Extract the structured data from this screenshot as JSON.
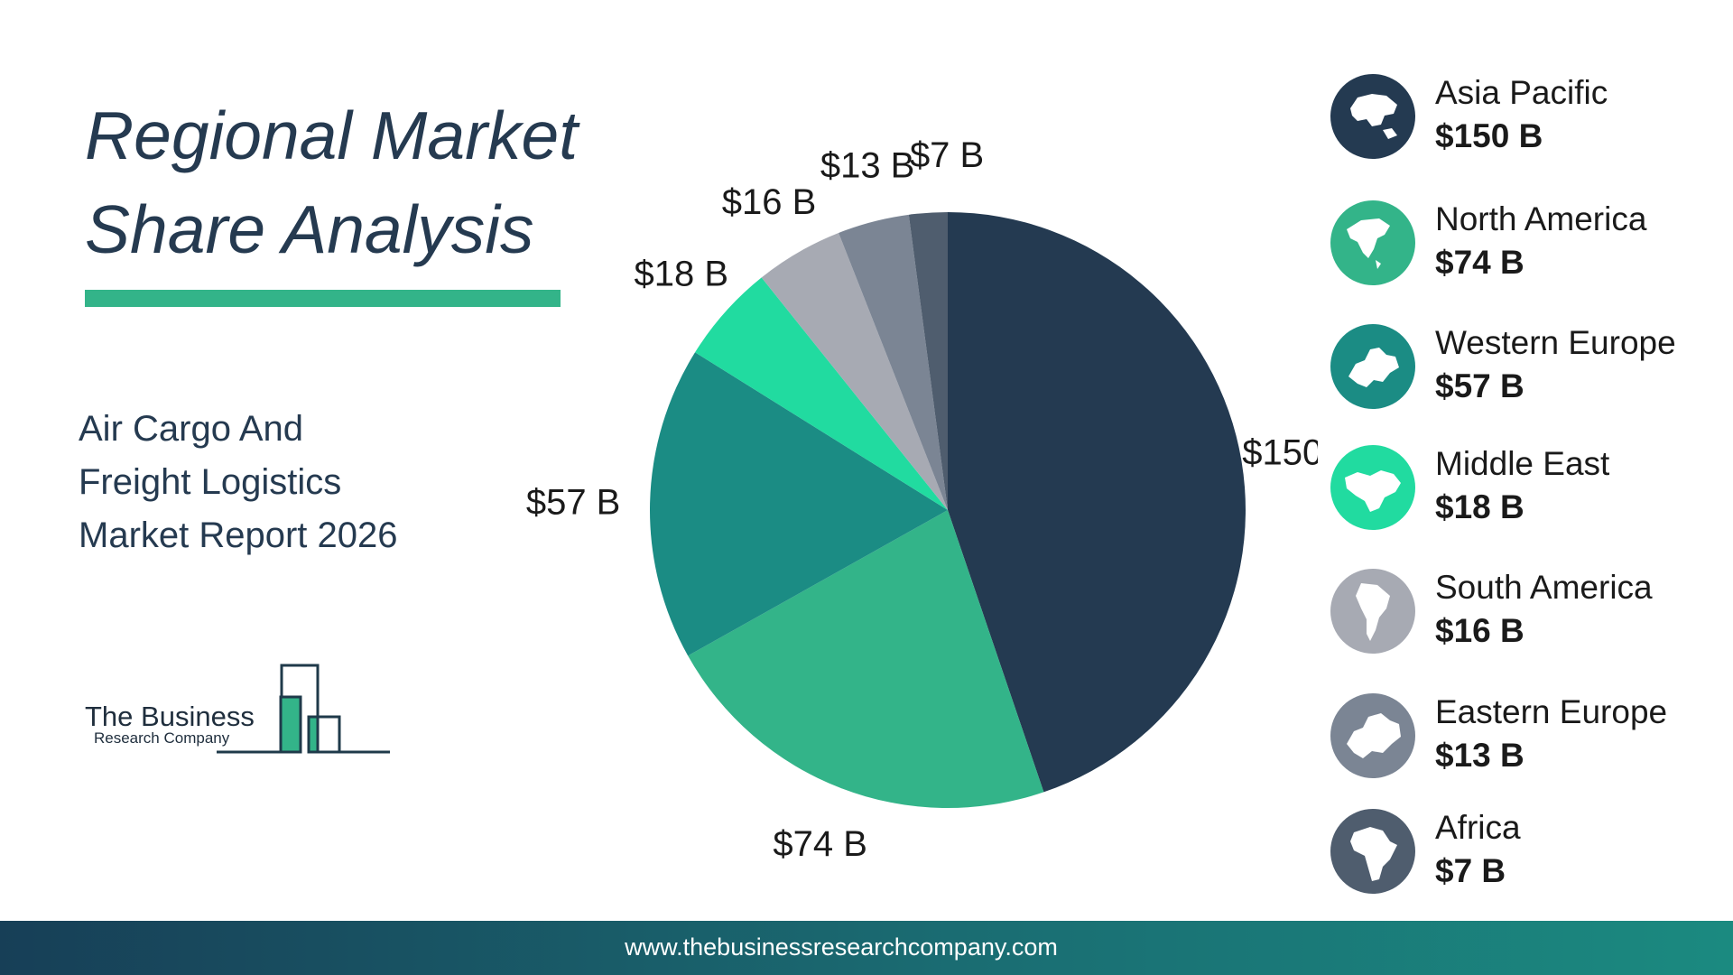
{
  "heading": {
    "line1": "Regional Market",
    "line2": "Share Analysis"
  },
  "subheading": {
    "line1": "Air Cargo And",
    "line2": "Freight Logistics",
    "line3": "Market Report 2026"
  },
  "logo": {
    "line1": "The Business",
    "line2": "Research Company"
  },
  "footer": {
    "url": "www.thebusinessresearchcompany.com"
  },
  "colors": {
    "title": "#253a50",
    "accent": "#33b489",
    "asia_pacific": "#243a51",
    "north_america": "#33b489",
    "western_europe": "#1b8c84",
    "middle_east": "#21dba0",
    "south_america": "#a7aab3",
    "eastern_europe": "#7b8594",
    "africa": "#4f5d6e"
  },
  "chart_data": {
    "type": "pie",
    "title": "Regional Market Share Analysis",
    "unit": "$ B",
    "slices": [
      {
        "name": "Asia Pacific",
        "value": 150,
        "label": "$150 B",
        "color": "#243a51",
        "icon": "asia-pacific-globe-icon"
      },
      {
        "name": "North America",
        "value": 74,
        "label": "$74 B",
        "color": "#33b489",
        "icon": "north-america-globe-icon"
      },
      {
        "name": "Western Europe",
        "value": 57,
        "label": "$57 B",
        "color": "#1b8c84",
        "icon": "western-europe-map-icon"
      },
      {
        "name": "Middle East",
        "value": 18,
        "label": "$18 B",
        "color": "#21dba0",
        "icon": "middle-east-map-icon"
      },
      {
        "name": "South America",
        "value": 16,
        "label": "$16 B",
        "color": "#a7aab3",
        "icon": "south-america-map-icon"
      },
      {
        "name": "Eastern Europe",
        "value": 13,
        "label": "$13 B",
        "color": "#7b8594",
        "icon": "eastern-europe-map-icon"
      },
      {
        "name": "Africa",
        "value": 7,
        "label": "$7 B",
        "color": "#4f5d6e",
        "icon": "africa-map-icon"
      }
    ],
    "start_angle_deg": 0,
    "direction": "clockwise",
    "legend_position": "right"
  }
}
